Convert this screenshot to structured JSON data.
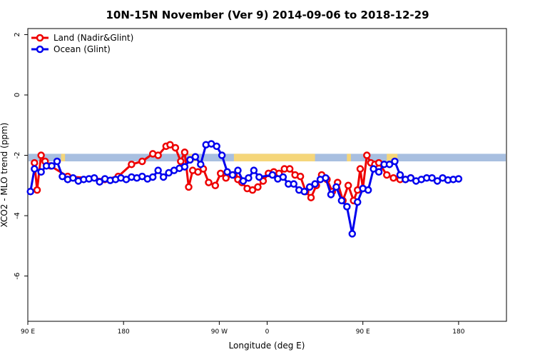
{
  "chart_data": {
    "type": "line",
    "title": "10N-15N November (Ver 9)   2014-09-06 to 2018-12-29",
    "xlabel": "Longitude (deg E)",
    "ylabel": "XCO2 - MLO trend (ppm)",
    "xlim": [
      -180,
      180
    ],
    "ylim": [
      -7.5,
      2.2
    ],
    "xticks": [
      {
        "value": -180,
        "label": "90 E"
      },
      {
        "value": -108,
        "label": "180"
      },
      {
        "value": -36,
        "label": "90 W"
      },
      {
        "value": 0,
        "label": "0"
      },
      {
        "value": 72,
        "label": "90 E"
      },
      {
        "value": 144,
        "label": "180"
      }
    ],
    "yticks": [
      {
        "value": 2,
        "label": "2"
      },
      {
        "value": 0,
        "label": "0"
      },
      {
        "value": -2,
        "label": "-2"
      },
      {
        "value": -4,
        "label": "-4"
      },
      {
        "value": -6,
        "label": "-6"
      }
    ],
    "grid": false,
    "legend_position": "top-left",
    "map_strip": {
      "y_range": [
        -2.2,
        -1.95
      ],
      "ocean_color": "#a8bfe0",
      "land_color": "#f5d67a",
      "land_segments": [
        [
          -155,
          -152
        ],
        [
          -59,
          -52
        ],
        [
          -25,
          36
        ],
        [
          60,
          63
        ],
        [
          90,
          98
        ]
      ]
    },
    "series": [
      {
        "name": "Land (Nadir&Glint)",
        "color": "#ee0000",
        "x": [
          -175,
          -173,
          -170,
          -167,
          -163,
          -150,
          -122,
          -112,
          -102,
          -94,
          -86,
          -82,
          -76,
          -73,
          -69,
          -65,
          -62,
          -59,
          -56,
          -52,
          -48,
          -44,
          -39,
          -35,
          -31,
          -25,
          -22,
          -19,
          -15,
          -11,
          -7,
          -3,
          1,
          5,
          9,
          13,
          17,
          21,
          25,
          29,
          33,
          37,
          41,
          45,
          49,
          53,
          57,
          61,
          65,
          68,
          70,
          72,
          75,
          78,
          81,
          84,
          90,
          95,
          100,
          104,
          108
        ],
        "y": [
          -2.25,
          -3.15,
          -2.0,
          -2.2,
          -2.35,
          -2.7,
          -2.8,
          -2.7,
          -2.3,
          -2.2,
          -1.95,
          -2.0,
          -1.7,
          -1.65,
          -1.75,
          -2.2,
          -1.9,
          -3.05,
          -2.5,
          -2.55,
          -2.45,
          -2.9,
          -3.0,
          -2.6,
          -2.75,
          -2.65,
          -2.8,
          -2.9,
          -3.1,
          -3.15,
          -3.05,
          -2.85,
          -2.6,
          -2.55,
          -2.6,
          -2.45,
          -2.45,
          -2.65,
          -2.7,
          -3.2,
          -3.4,
          -3.0,
          -2.65,
          -2.8,
          -3.2,
          -2.9,
          -3.5,
          -3.0,
          -3.5,
          -3.15,
          -2.45,
          -3.1,
          -2.0,
          -2.25,
          -2.3,
          -2.25,
          -2.65,
          -2.75,
          -2.8,
          -2.8,
          -2.75
        ]
      },
      {
        "name": "Ocean (Glint)",
        "color": "#0000ee",
        "x": [
          -178,
          -175,
          -170,
          -166,
          -162,
          -158,
          -154,
          -150,
          -146,
          -142,
          -138,
          -134,
          -130,
          -126,
          -122,
          -118,
          -114,
          -110,
          -106,
          -102,
          -98,
          -94,
          -90,
          -86,
          -82,
          -78,
          -74,
          -70,
          -66,
          -62,
          -58,
          -54,
          -50,
          -46,
          -42,
          -38,
          -34,
          -30,
          -26,
          -22,
          -18,
          -14,
          -10,
          -6,
          4,
          8,
          12,
          16,
          20,
          24,
          28,
          32,
          36,
          40,
          44,
          48,
          52,
          56,
          60,
          64,
          68,
          72,
          76,
          80,
          84,
          88,
          92,
          96,
          100,
          104,
          108,
          112,
          116,
          120,
          124,
          128,
          132,
          136,
          140,
          144
        ],
        "y": [
          -3.2,
          -2.45,
          -2.55,
          -2.35,
          -2.35,
          -2.2,
          -2.7,
          -2.8,
          -2.75,
          -2.85,
          -2.8,
          -2.78,
          -2.75,
          -2.88,
          -2.78,
          -2.83,
          -2.8,
          -2.75,
          -2.8,
          -2.72,
          -2.75,
          -2.7,
          -2.78,
          -2.72,
          -2.5,
          -2.72,
          -2.58,
          -2.5,
          -2.43,
          -2.38,
          -2.15,
          -2.05,
          -2.3,
          -1.65,
          -1.62,
          -1.7,
          -2.0,
          -2.55,
          -2.65,
          -2.5,
          -2.85,
          -2.75,
          -2.5,
          -2.72,
          -2.65,
          -2.78,
          -2.72,
          -2.95,
          -2.95,
          -3.15,
          -3.2,
          -3.05,
          -2.95,
          -2.8,
          -2.75,
          -3.3,
          -3.05,
          -3.5,
          -3.7,
          -4.6,
          -3.55,
          -3.1,
          -3.15,
          -2.45,
          -2.55,
          -2.3,
          -2.3,
          -2.2,
          -2.65,
          -2.8,
          -2.75,
          -2.85,
          -2.8,
          -2.75,
          -2.75,
          -2.85,
          -2.75,
          -2.82,
          -2.8,
          -2.78
        ]
      }
    ]
  }
}
